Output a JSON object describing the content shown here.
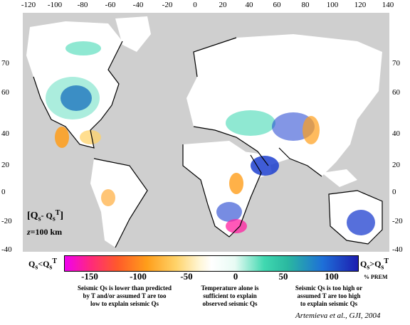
{
  "longitude_ticks": [
    "-120",
    "-100",
    "-80",
    "-60",
    "-40",
    "-20",
    "0",
    "20",
    "40",
    "60",
    "80",
    "100",
    "120",
    "140"
  ],
  "latitude_ticks_left": [
    "70",
    "60",
    "40",
    "20",
    "0",
    "-20",
    "-40"
  ],
  "latitude_ticks_right": [
    "70",
    "60",
    "40",
    "20",
    "0",
    "-20",
    "-40"
  ],
  "inset": {
    "quantity": "[Q",
    "quantity_sub": "s",
    "minus": "- Q",
    "q_sub": "s",
    "q_sup": "T",
    "close": "]",
    "depth_prefix": "z",
    "depth": "=100 km"
  },
  "colorbar": {
    "ticks": [
      "-150",
      "-100",
      "-50",
      "0",
      "50",
      "100"
    ],
    "left_label": {
      "q": "Q",
      "sub": "s",
      "op": "<Q",
      "sub2": "s",
      "sup": "T"
    },
    "right_label": {
      "q": "Q",
      "sub": "s",
      "op": ">Q",
      "sub2": "s",
      "sup": "T"
    },
    "unit": "% PREM",
    "colors": {
      "low": "#f000f0",
      "mid": "#ffffff",
      "high": "#1d1db0"
    }
  },
  "explanations": {
    "low": [
      "Seismic Qs is lower than predicted",
      "by T and/or assumed T are too",
      "low to explain seismic Qs"
    ],
    "mid": [
      "Temperature alone is",
      "sufficient to explain",
      "observed seismic Qs"
    ],
    "high": [
      "Seismic Qs is too high or",
      "assumed T are too high",
      "to explain seismic Qs"
    ]
  },
  "citation": "Artemieva et al., GJI, 2004",
  "map_colors": {
    "ocean": "#cfcfcf",
    "land": "#ffffff",
    "blue": "#1d3fcf",
    "teal": "#45d8b4",
    "orange": "#ff9e1a",
    "magenta": "#ff20a0"
  }
}
